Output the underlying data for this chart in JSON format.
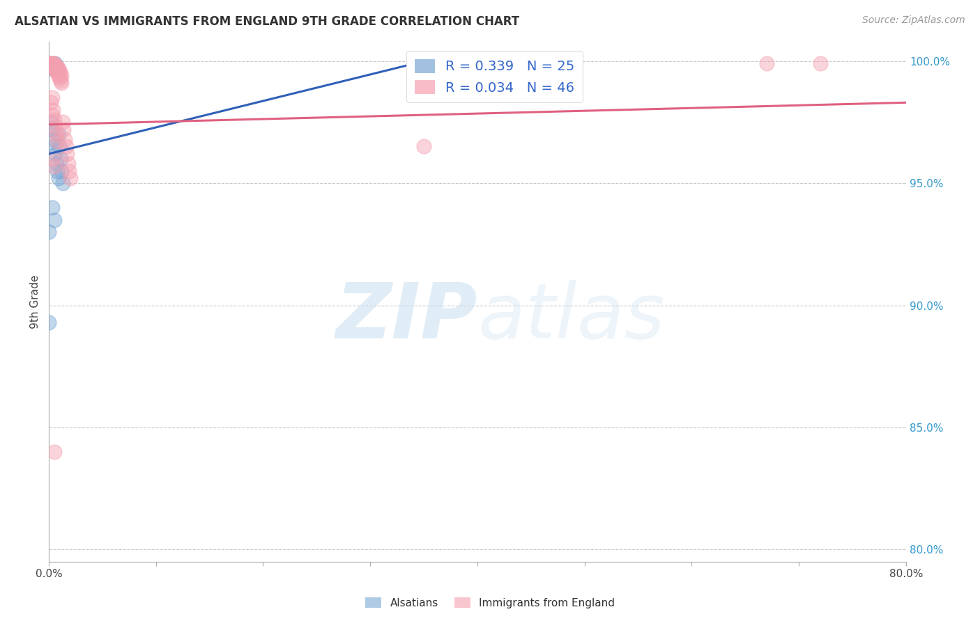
{
  "title": "ALSATIAN VS IMMIGRANTS FROM ENGLAND 9TH GRADE CORRELATION CHART",
  "source": "Source: ZipAtlas.com",
  "ylabel": "9th Grade",
  "xlim": [
    0.0,
    0.8
  ],
  "ylim": [
    0.795,
    1.008
  ],
  "yticks_right": [
    0.8,
    0.85,
    0.9,
    0.95,
    1.0
  ],
  "yticklabels_right": [
    "80.0%",
    "85.0%",
    "90.0%",
    "95.0%",
    "100.0%"
  ],
  "blue_R": 0.339,
  "blue_N": 25,
  "pink_R": 0.034,
  "pink_N": 46,
  "blue_color": "#7BA7D4",
  "pink_color": "#F4A0B0",
  "blue_line_color": "#3060B8",
  "pink_line_color": "#E06080",
  "watermark_zip": "ZIP",
  "watermark_atlas": "atlas",
  "blue_scatter_x": [
    0.001,
    0.002,
    0.003,
    0.004,
    0.005,
    0.006,
    0.007,
    0.008,
    0.009,
    0.01,
    0.011,
    0.012,
    0.013,
    0.002,
    0.003,
    0.004,
    0.005,
    0.006,
    0.007,
    0.008,
    0.009,
    0.003,
    0.005,
    0.0,
    0.0
  ],
  "blue_scatter_y": [
    0.997,
    0.998,
    0.999,
    0.998,
    0.997,
    0.999,
    0.998,
    0.997,
    0.97,
    0.965,
    0.96,
    0.955,
    0.95,
    0.975,
    0.972,
    0.968,
    0.965,
    0.962,
    0.958,
    0.955,
    0.952,
    0.94,
    0.935,
    0.93,
    0.893
  ],
  "pink_scatter_x": [
    0.001,
    0.001,
    0.002,
    0.002,
    0.003,
    0.003,
    0.004,
    0.004,
    0.005,
    0.005,
    0.006,
    0.006,
    0.007,
    0.007,
    0.008,
    0.008,
    0.009,
    0.009,
    0.01,
    0.01,
    0.011,
    0.011,
    0.012,
    0.012,
    0.013,
    0.014,
    0.015,
    0.016,
    0.017,
    0.018,
    0.019,
    0.02,
    0.003,
    0.004,
    0.005,
    0.006,
    0.002,
    0.007,
    0.008,
    0.003,
    0.004,
    0.005,
    0.35,
    0.67,
    0.72,
    0.005
  ],
  "pink_scatter_y": [
    0.998,
    0.999,
    0.999,
    0.998,
    0.999,
    0.998,
    0.999,
    0.997,
    0.998,
    0.999,
    0.998,
    0.997,
    0.998,
    0.996,
    0.997,
    0.995,
    0.997,
    0.994,
    0.996,
    0.993,
    0.995,
    0.992,
    0.994,
    0.991,
    0.975,
    0.972,
    0.968,
    0.965,
    0.962,
    0.958,
    0.955,
    0.952,
    0.978,
    0.98,
    0.976,
    0.973,
    0.983,
    0.97,
    0.967,
    0.985,
    0.96,
    0.957,
    0.965,
    0.999,
    0.999,
    0.84
  ],
  "blue_line_x": [
    0.0,
    0.36
  ],
  "blue_line_y": [
    0.962,
    1.001
  ],
  "pink_line_x": [
    0.0,
    0.8
  ],
  "pink_line_y": [
    0.974,
    0.983
  ]
}
